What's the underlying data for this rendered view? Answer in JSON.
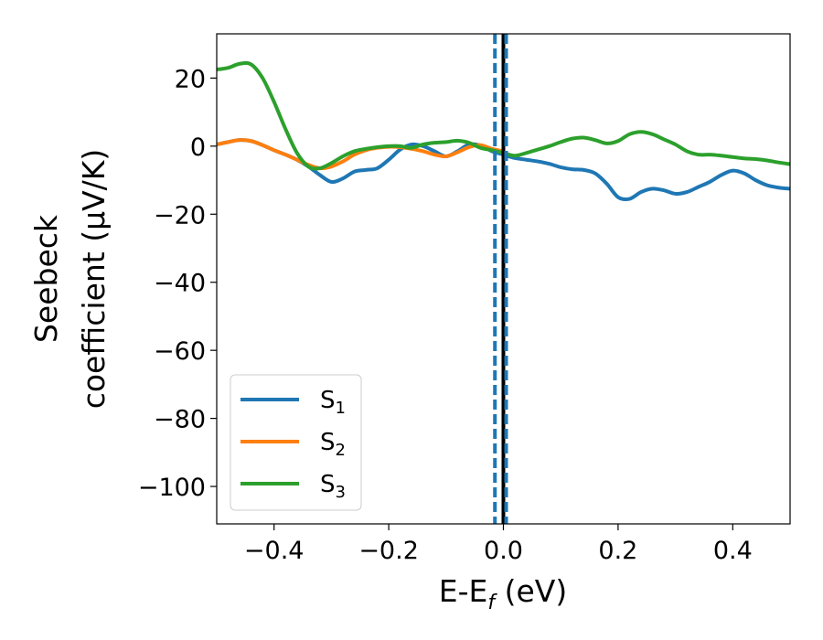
{
  "chart_data": {
    "type": "line",
    "title": "",
    "xlabel": {
      "main": "E-E",
      "sub": "f",
      "suffix": " (eV)"
    },
    "ylabel": {
      "line1": "Seebeck",
      "line2": "coefficient  (μV/K)"
    },
    "xlim": [
      -0.5,
      0.5
    ],
    "ylim": [
      -111,
      33
    ],
    "xticks": [
      -0.4,
      -0.2,
      0.0,
      0.2,
      0.4
    ],
    "xtick_labels": [
      "−0.4",
      "−0.2",
      "0.0",
      "0.2",
      "0.4"
    ],
    "yticks": [
      20,
      0,
      -20,
      -40,
      -60,
      -80,
      -100
    ],
    "ytick_labels": [
      "20",
      "0",
      "−20",
      "−40",
      "−60",
      "−80",
      "−100"
    ],
    "grid": false,
    "legend": {
      "position": "lower-left"
    },
    "vlines": [
      {
        "x": 0.0,
        "color": "#000000",
        "style": "solid"
      },
      {
        "x": -0.01,
        "color": "#1f77b4",
        "style": "dashed"
      },
      {
        "x": 0.0,
        "color": "#1f77b4",
        "style": "dashed"
      }
    ],
    "series": [
      {
        "name": "S",
        "sub": "1",
        "color": "#1f77b4",
        "x": [
          -0.5,
          -0.48,
          -0.46,
          -0.44,
          -0.42,
          -0.4,
          -0.38,
          -0.36,
          -0.34,
          -0.32,
          -0.3,
          -0.28,
          -0.26,
          -0.24,
          -0.22,
          -0.2,
          -0.18,
          -0.16,
          -0.14,
          -0.12,
          -0.1,
          -0.08,
          -0.06,
          -0.04,
          -0.02,
          0.0,
          0.02,
          0.04,
          0.06,
          0.08,
          0.1,
          0.12,
          0.14,
          0.16,
          0.18,
          0.2,
          0.22,
          0.24,
          0.26,
          0.28,
          0.3,
          0.32,
          0.34,
          0.36,
          0.38,
          0.4,
          0.42,
          0.44,
          0.46,
          0.48,
          0.5
        ],
        "y": [
          0.5,
          1.2,
          1.8,
          1.5,
          0.3,
          -1.2,
          -2.5,
          -4.0,
          -6.0,
          -8.5,
          -10.5,
          -9.5,
          -7.5,
          -7.0,
          -6.5,
          -4.0,
          -1.0,
          0.5,
          0.0,
          -1.5,
          -3.0,
          -1.5,
          0.5,
          0.2,
          -1.5,
          -2.5,
          -3.5,
          -4.0,
          -4.5,
          -5.2,
          -6.2,
          -6.8,
          -7.0,
          -8.0,
          -11.0,
          -15.0,
          -15.5,
          -13.5,
          -12.5,
          -13.0,
          -14.0,
          -13.5,
          -12.0,
          -10.5,
          -8.5,
          -7.2,
          -8.0,
          -10.0,
          -11.5,
          -12.2,
          -12.5
        ]
      },
      {
        "name": "S",
        "sub": "2",
        "color": "#ff7f0e",
        "x": [
          -0.5,
          -0.48,
          -0.46,
          -0.44,
          -0.42,
          -0.4,
          -0.38,
          -0.36,
          -0.34,
          -0.32,
          -0.3,
          -0.28,
          -0.26,
          -0.24,
          -0.22,
          -0.2,
          -0.18,
          -0.16,
          -0.14,
          -0.12,
          -0.1,
          -0.08,
          -0.06,
          -0.04,
          -0.02,
          0.0
        ],
        "y": [
          0.5,
          1.2,
          1.8,
          1.5,
          0.3,
          -1.2,
          -2.5,
          -4.0,
          -5.5,
          -6.5,
          -6.0,
          -4.5,
          -2.5,
          -1.2,
          -0.5,
          -0.2,
          -0.3,
          -0.8,
          -1.5,
          -2.5,
          -3.0,
          -1.8,
          -0.3,
          0.3,
          -0.8,
          -1.5
        ]
      },
      {
        "name": "S",
        "sub": "3",
        "color": "#2ca02c",
        "x": [
          -0.5,
          -0.48,
          -0.46,
          -0.44,
          -0.42,
          -0.4,
          -0.38,
          -0.36,
          -0.34,
          -0.32,
          -0.3,
          -0.28,
          -0.26,
          -0.24,
          -0.22,
          -0.2,
          -0.18,
          -0.16,
          -0.14,
          -0.12,
          -0.1,
          -0.08,
          -0.06,
          -0.04,
          -0.02,
          0.0,
          0.02,
          0.04,
          0.06,
          0.08,
          0.1,
          0.12,
          0.14,
          0.16,
          0.18,
          0.2,
          0.22,
          0.24,
          0.26,
          0.28,
          0.3,
          0.32,
          0.34,
          0.36,
          0.38,
          0.4,
          0.42,
          0.44,
          0.46,
          0.48,
          0.5
        ],
        "y": [
          22.5,
          23.0,
          24.2,
          24.0,
          20.0,
          13.0,
          5.0,
          -2.0,
          -6.0,
          -6.5,
          -5.0,
          -3.0,
          -1.5,
          -0.8,
          -0.3,
          0.0,
          0.0,
          -0.5,
          0.5,
          1.0,
          1.2,
          1.6,
          1.0,
          -0.5,
          -1.2,
          -2.0,
          -2.8,
          -2.0,
          -1.0,
          0.0,
          1.2,
          2.2,
          2.5,
          1.8,
          0.8,
          1.5,
          3.5,
          4.2,
          3.5,
          2.0,
          0.5,
          -1.5,
          -2.5,
          -2.5,
          -2.8,
          -3.2,
          -3.6,
          -3.8,
          -4.2,
          -4.8,
          -5.3
        ]
      }
    ]
  }
}
